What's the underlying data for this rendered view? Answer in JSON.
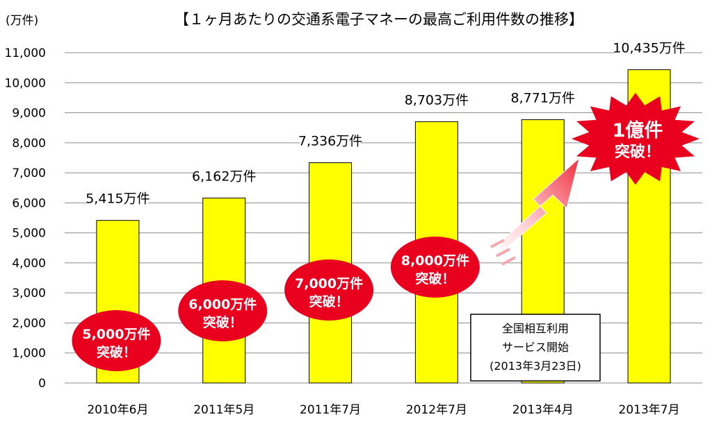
{
  "chart_data": {
    "type": "bar",
    "title": "【１ヶ月あたりの交通系電子マネーの最高ご利用件数の推移】",
    "ylabel": "(万件)",
    "xlabel": "",
    "categories": [
      "2010年6月",
      "2011年5月",
      "2011年7月",
      "2012年7月",
      "2013年4月",
      "2013年7月"
    ],
    "values": [
      5415,
      6162,
      7336,
      8703,
      8771,
      10435
    ],
    "value_labels": [
      "5,415万件",
      "6,162万件",
      "7,336万件",
      "8,703万件",
      "8,771万件",
      "10,435万件"
    ],
    "ylim": [
      0,
      11000
    ],
    "yticks": [
      0,
      1000,
      2000,
      3000,
      4000,
      5000,
      6000,
      7000,
      8000,
      9000,
      10000,
      11000
    ],
    "ytick_labels": [
      "0",
      "1,000",
      "2,000",
      "3,000",
      "4,000",
      "5,000",
      "6,000",
      "7,000",
      "8,000",
      "9,000",
      "10,000",
      "11,000"
    ],
    "grid": true,
    "bar_color": "#ffff00",
    "bar_edge_color": "#000000",
    "annotations": {
      "badges": [
        {
          "line1": "5,000万件",
          "line2": "突破！"
        },
        {
          "line1": "6,000万件",
          "line2": "突破！"
        },
        {
          "line1": "7,000万件",
          "line2": "突破！"
        },
        {
          "line1": "8,000万件",
          "line2": "突破！"
        }
      ],
      "badge_color": "#e8001e",
      "burst": {
        "line1": "1億件",
        "line2": "突破！",
        "color": "#e8001e"
      },
      "note": {
        "lines": [
          "全国相互利用",
          "サービス開始",
          "(2013年3月23日)"
        ]
      }
    }
  }
}
